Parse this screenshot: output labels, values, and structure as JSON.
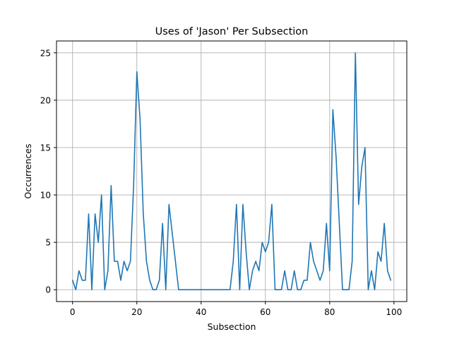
{
  "chart_data": {
    "type": "line",
    "title": "Uses of 'Jason' Per Subsection",
    "xlabel": "Subsection",
    "ylabel": "Occurrences",
    "xlim": [
      -5,
      104
    ],
    "ylim": [
      -1.25,
      26.25
    ],
    "xticks": [
      0,
      20,
      40,
      60,
      80,
      100
    ],
    "yticks": [
      0,
      5,
      10,
      15,
      20,
      25
    ],
    "grid": true,
    "legend": "none",
    "series": [
      {
        "color": "#1f77b4",
        "x": [
          0,
          1,
          2,
          3,
          4,
          5,
          6,
          7,
          8,
          9,
          10,
          11,
          12,
          13,
          14,
          15,
          16,
          17,
          18,
          19,
          20,
          21,
          22,
          23,
          24,
          25,
          26,
          27,
          28,
          29,
          30,
          31,
          32,
          33,
          34,
          35,
          36,
          37,
          38,
          39,
          40,
          41,
          42,
          43,
          44,
          45,
          46,
          47,
          48,
          49,
          50,
          51,
          52,
          53,
          54,
          55,
          56,
          57,
          58,
          59,
          60,
          61,
          62,
          63,
          64,
          65,
          66,
          67,
          68,
          69,
          70,
          71,
          72,
          73,
          74,
          75,
          76,
          77,
          78,
          79,
          80,
          81,
          82,
          83,
          84,
          85,
          86,
          87,
          88,
          89,
          90,
          91,
          92,
          93,
          94,
          95,
          96,
          97,
          98,
          99
        ],
        "values": [
          1,
          0,
          2,
          1,
          1,
          8,
          0,
          8,
          5,
          10,
          0,
          2,
          11,
          3,
          3,
          1,
          3,
          2,
          3,
          11,
          23,
          18,
          8,
          3,
          1,
          0,
          0,
          1,
          7,
          0,
          9,
          6,
          3,
          0,
          0,
          0,
          0,
          0,
          0,
          0,
          0,
          0,
          0,
          0,
          0,
          0,
          0,
          0,
          0,
          0,
          3,
          9,
          0,
          9,
          4,
          0,
          2,
          3,
          2,
          5,
          4,
          5,
          9,
          0,
          0,
          0,
          2,
          0,
          0,
          2,
          0,
          0,
          1,
          1,
          5,
          3,
          2,
          1,
          2,
          7,
          2,
          19,
          14,
          7,
          0,
          0,
          0,
          3,
          25,
          9,
          13,
          15,
          0,
          2,
          0,
          4,
          3,
          7,
          2,
          1
        ]
      }
    ]
  }
}
